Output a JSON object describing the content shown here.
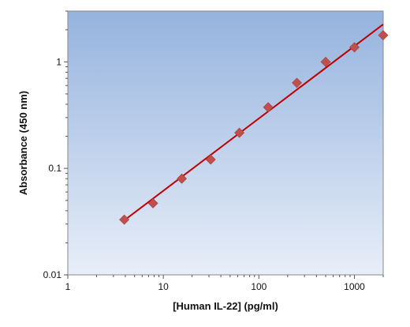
{
  "chart_data": {
    "type": "scatter",
    "title": "",
    "xlabel": "[Human IL-22] (pg/ml)",
    "ylabel": "Absorbance (450 nm)",
    "x_scale": "log",
    "y_scale": "log",
    "xlim": [
      1,
      2000
    ],
    "ylim": [
      0.01,
      3
    ],
    "x_ticks": [
      1,
      10,
      100,
      1000
    ],
    "x_tick_labels": [
      "1",
      "10",
      "100",
      "1000"
    ],
    "y_ticks": [
      0.01,
      0.1,
      1
    ],
    "y_tick_labels": [
      "0.01",
      "0.1",
      "1"
    ],
    "grid": false,
    "series": [
      {
        "x": [
          3.9,
          7.8,
          15.6,
          31.3,
          62.5,
          125,
          250,
          500,
          1000,
          2000
        ],
        "y": [
          0.033,
          0.047,
          0.08,
          0.121,
          0.216,
          0.375,
          0.635,
          1.0,
          1.37,
          1.78
        ],
        "marker": "diamond",
        "color": "#c0504d"
      }
    ],
    "fit_line": {
      "type": "power",
      "x": [
        3.9,
        2000
      ],
      "y": [
        0.0325,
        2.25
      ],
      "color": "#c00000"
    },
    "plot_background": {
      "top": "#95b3de",
      "bottom": "#e8eef8"
    }
  }
}
